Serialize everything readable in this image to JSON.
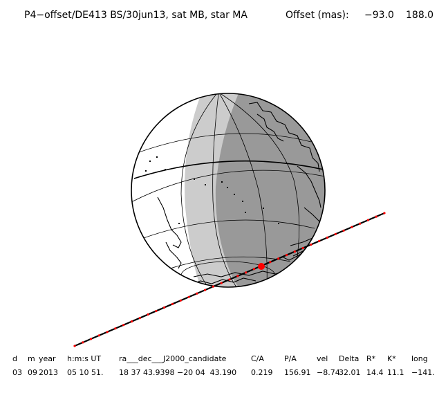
{
  "header": {
    "title": "P4−offset/DE413 BS/30jun13, sat MB, star MA",
    "offset_label": "Offset (mas):",
    "offset_dx": "−93.0",
    "offset_dy": "188.0"
  },
  "colors": {
    "night_shade": "#999999",
    "twilight_shade": "#cccccc",
    "track_line": "#000000",
    "track_marker": "#ff0000"
  },
  "table": {
    "headers": [
      "d",
      "m",
      "year",
      "h:m:s UT",
      "ra___dec___J2000_candidate",
      "C/A",
      "P/A",
      "vel",
      "Delta",
      "R*",
      "K*",
      "long"
    ],
    "values": [
      "03",
      "09",
      "2013",
      "05 10 51.",
      "18 37 43.9398 −20 04  43.190",
      "0.219",
      "156.91",
      "−8.74",
      "32.01",
      "14.4",
      "11.1",
      "−141."
    ]
  }
}
